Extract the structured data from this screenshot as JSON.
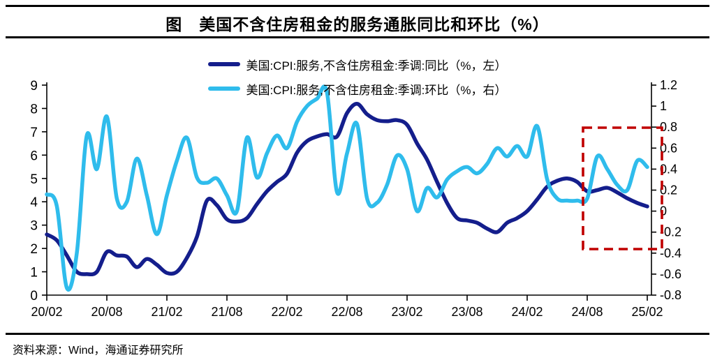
{
  "title": "图　美国不含住房租金的服务通胀同比和环比（%）",
  "source": "资料来源：Wind，海通证券研究所",
  "colors": {
    "yoy_line": "#141e8c",
    "mom_line": "#2fbcec",
    "highlight_box": "#c00000",
    "axis": "#000000"
  },
  "legend": [
    {
      "label": "美国:CPI:服务,不含住房租金:季调:同比（%，左）",
      "color": "#141e8c"
    },
    {
      "label": "美国:CPI:服务,不含住房租金:季调:环比（%，右）",
      "color": "#2fbcec"
    }
  ],
  "chart_data": {
    "type": "line",
    "title": "美国不含住房租金的服务通胀同比和环比（%）",
    "legend_position": "top",
    "grid": false,
    "left_ylim": [
      0,
      9
    ],
    "right_ylim": [
      -0.8,
      1.2
    ],
    "left_ticks": [
      "9",
      "8",
      "7",
      "6",
      "5",
      "4",
      "3",
      "2",
      "1",
      "0"
    ],
    "right_ticks": [
      "1.2",
      "1",
      "0.8",
      "0.6",
      "0.4",
      "0.2",
      "0",
      "-0.2",
      "-0.4",
      "-0.6",
      "-0.8"
    ],
    "x_tick_labels": [
      "20/02",
      "20/08",
      "21/02",
      "21/08",
      "22/02",
      "22/08",
      "23/02",
      "23/08",
      "24/02",
      "24/08",
      "25/02"
    ],
    "x_tick_month_indices": [
      0,
      6,
      12,
      18,
      24,
      30,
      36,
      42,
      48,
      54,
      60
    ],
    "months": [
      "20/02",
      "20/03",
      "20/04",
      "20/05",
      "20/06",
      "20/07",
      "20/08",
      "20/09",
      "20/10",
      "20/11",
      "20/12",
      "21/01",
      "21/02",
      "21/03",
      "21/04",
      "21/05",
      "21/06",
      "21/07",
      "21/08",
      "21/09",
      "21/10",
      "21/11",
      "21/12",
      "22/01",
      "22/02",
      "22/03",
      "22/04",
      "22/05",
      "22/06",
      "22/07",
      "22/08",
      "22/09",
      "22/10",
      "22/11",
      "22/12",
      "23/01",
      "23/02",
      "23/03",
      "23/04",
      "23/05",
      "23/06",
      "23/07",
      "23/08",
      "23/09",
      "23/10",
      "23/11",
      "23/12",
      "24/01",
      "24/02",
      "24/03",
      "24/04",
      "24/05",
      "24/06",
      "24/07",
      "24/08",
      "24/09",
      "24/10",
      "24/11",
      "24/12",
      "25/01",
      "25/02"
    ],
    "series": [
      {
        "name": "美国:CPI:服务,不含住房租金:季调:同比（%，左）",
        "axis": "left",
        "color": "#141e8c",
        "values": [
          2.6,
          2.35,
          1.7,
          1.0,
          0.9,
          1.0,
          1.85,
          1.7,
          1.65,
          1.2,
          1.55,
          1.3,
          0.95,
          1.0,
          1.6,
          2.5,
          4.05,
          3.85,
          3.25,
          3.15,
          3.3,
          3.9,
          4.45,
          4.85,
          5.2,
          6.1,
          6.6,
          6.8,
          6.9,
          6.8,
          7.8,
          8.2,
          7.75,
          7.5,
          7.45,
          7.5,
          7.3,
          6.5,
          5.8,
          4.85,
          3.95,
          3.3,
          3.2,
          3.1,
          2.85,
          2.7,
          3.1,
          3.3,
          3.6,
          4.1,
          4.65,
          4.9,
          5.0,
          4.85,
          4.45,
          4.5,
          4.6,
          4.4,
          4.15,
          3.95,
          3.8
        ]
      },
      {
        "name": "美国:CPI:服务,不含住房租金:季调:环比（%，右）",
        "axis": "right",
        "color": "#2fbcec",
        "values": [
          0.16,
          0.05,
          -0.73,
          -0.4,
          0.72,
          0.4,
          0.9,
          0.12,
          0.09,
          0.5,
          0.15,
          -0.22,
          0.15,
          0.48,
          0.7,
          0.32,
          0.27,
          0.31,
          0.15,
          0.0,
          0.7,
          0.32,
          0.55,
          0.72,
          0.6,
          0.85,
          1.0,
          1.07,
          1.13,
          0.18,
          0.55,
          0.83,
          0.12,
          0.08,
          0.25,
          0.53,
          0.4,
          0.0,
          0.22,
          0.13,
          0.3,
          0.38,
          0.42,
          0.36,
          0.45,
          0.6,
          0.52,
          0.62,
          0.52,
          0.81,
          0.3,
          0.12,
          0.1,
          0.1,
          0.12,
          0.52,
          0.4,
          0.25,
          0.2,
          0.48,
          0.42
        ]
      }
    ],
    "highlight_box": {
      "note": "red dashed box highlighting period from about 24/07 to 25/02",
      "x": 835,
      "y": 183,
      "width": 113,
      "height": 174,
      "top_right_axis_value": 0.8,
      "bottom_right_axis_value": -0.36
    }
  }
}
